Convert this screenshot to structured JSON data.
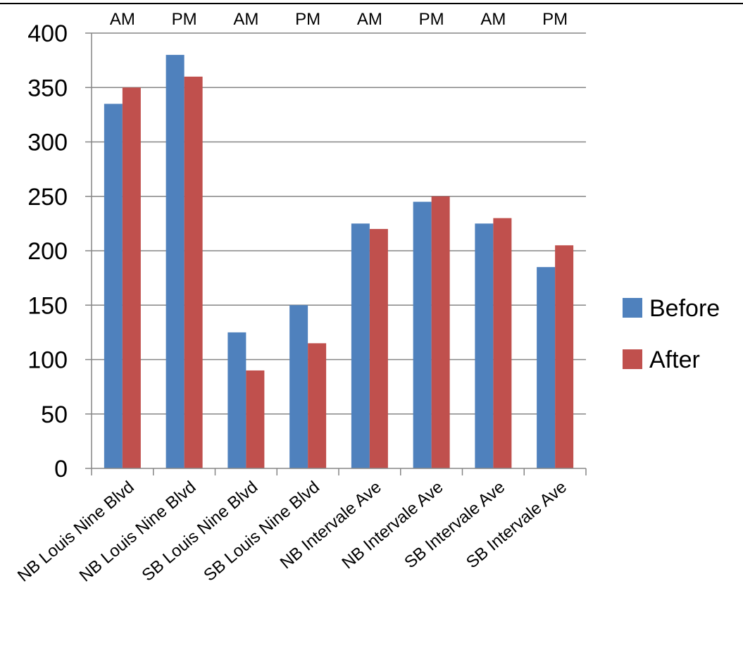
{
  "chart_data": {
    "type": "bar",
    "title": "",
    "xlabel": "",
    "ylabel": "",
    "categories": [
      "NB Louis Nine Blvd",
      "NB Louis Nine Blvd",
      "SB Louis Nine Blvd",
      "SB Louis Nine Blvd",
      "NB Intervale Ave",
      "NB Intervale Ave",
      "SB Intervale Ave",
      "SB Intervale Ave"
    ],
    "period_labels": [
      "AM",
      "PM",
      "AM",
      "PM",
      "AM",
      "PM",
      "AM",
      "PM"
    ],
    "series": [
      {
        "name": "Before",
        "color": "#4F81BD",
        "values": [
          335,
          380,
          125,
          150,
          225,
          245,
          225,
          185
        ]
      },
      {
        "name": "After",
        "color": "#C0504D",
        "values": [
          350,
          360,
          90,
          115,
          220,
          250,
          230,
          205
        ]
      }
    ],
    "ylim": [
      0,
      400
    ],
    "yticks": [
      0,
      50,
      100,
      150,
      200,
      250,
      300,
      350,
      400
    ],
    "grid": true,
    "legend_position": "right"
  }
}
